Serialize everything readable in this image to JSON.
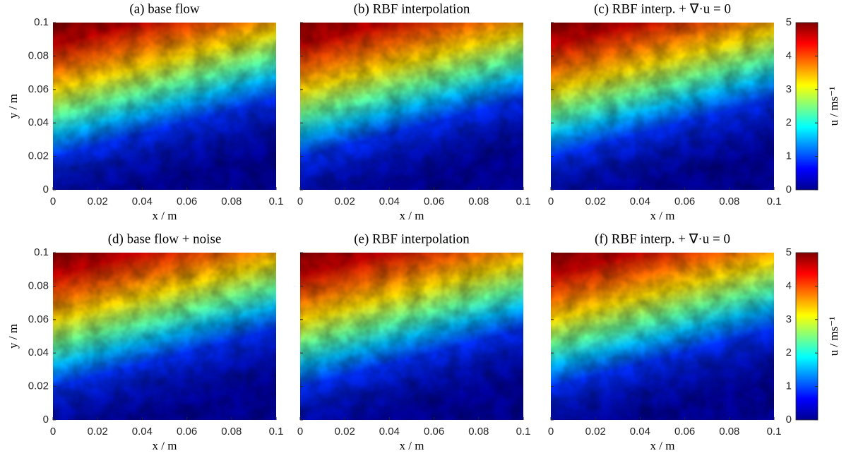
{
  "chart_data": [
    {
      "type": "heatmap",
      "title": "(a) base flow",
      "xlabel": "x / m",
      "ylabel": "y / m",
      "xlim": [
        0,
        0.1
      ],
      "xticks": [
        0,
        0.02,
        0.04,
        0.06,
        0.08,
        0.1
      ],
      "ylim": [
        0,
        0.1
      ],
      "yticks": [
        0,
        0.02,
        0.04,
        0.06,
        0.08,
        0.1
      ]
    },
    {
      "type": "heatmap",
      "title": "(b) RBF interpolation",
      "xlabel": "x / m",
      "xlim": [
        0,
        0.1
      ],
      "xticks": [
        0,
        0.02,
        0.04,
        0.06,
        0.08,
        0.1
      ],
      "ylim": [
        0,
        0.1
      ],
      "yticks": [
        0,
        0.02,
        0.04,
        0.06,
        0.08,
        0.1
      ]
    },
    {
      "type": "heatmap",
      "title": "(c) RBF interp. + ∇·u = 0",
      "xlabel": "x / m",
      "xlim": [
        0,
        0.1
      ],
      "xticks": [
        0,
        0.02,
        0.04,
        0.06,
        0.08,
        0.1
      ],
      "ylim": [
        0,
        0.1
      ],
      "yticks": [
        0,
        0.02,
        0.04,
        0.06,
        0.08,
        0.1
      ],
      "colorbar": {
        "label": "u / ms⁻¹",
        "lim": [
          0,
          5
        ],
        "ticks": [
          0,
          1,
          2,
          3,
          4,
          5
        ]
      }
    },
    {
      "type": "heatmap",
      "title": "(d) base flow + noise",
      "xlabel": "x / m",
      "ylabel": "y / m",
      "xlim": [
        0,
        0.1
      ],
      "xticks": [
        0,
        0.02,
        0.04,
        0.06,
        0.08,
        0.1
      ],
      "ylim": [
        0,
        0.1
      ],
      "yticks": [
        0,
        0.02,
        0.04,
        0.06,
        0.08,
        0.1
      ]
    },
    {
      "type": "heatmap",
      "title": "(e) RBF interpolation",
      "xlabel": "x / m",
      "xlim": [
        0,
        0.1
      ],
      "xticks": [
        0,
        0.02,
        0.04,
        0.06,
        0.08,
        0.1
      ],
      "ylim": [
        0,
        0.1
      ],
      "yticks": [
        0,
        0.02,
        0.04,
        0.06,
        0.08,
        0.1
      ]
    },
    {
      "type": "heatmap",
      "title": "(f) RBF interp. + ∇·u = 0",
      "xlabel": "x / m",
      "xlim": [
        0,
        0.1
      ],
      "xticks": [
        0,
        0.02,
        0.04,
        0.06,
        0.08,
        0.1
      ],
      "ylim": [
        0,
        0.1
      ],
      "yticks": [
        0,
        0.02,
        0.04,
        0.06,
        0.08,
        0.1
      ],
      "colorbar": {
        "label": "u / ms⁻¹",
        "lim": [
          0,
          5
        ],
        "ticks": [
          0,
          1,
          2,
          3,
          4,
          5
        ]
      }
    }
  ]
}
